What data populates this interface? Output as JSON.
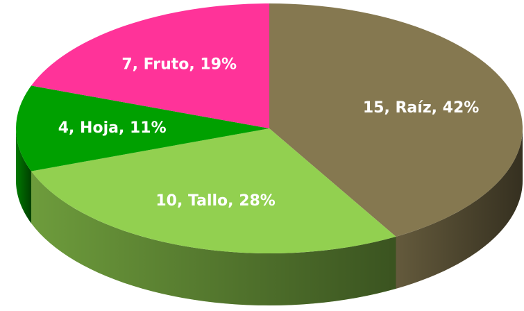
{
  "chart_data": {
    "type": "pie",
    "categories": [
      "Raíz",
      "Tallo",
      "Hoja",
      "Fruto"
    ],
    "values": [
      15,
      10,
      4,
      7
    ],
    "value_labels": [
      "15, Raíz, 42%",
      "10, Tallo, 28%",
      "4, Hoja, 11%",
      "7, Fruto, 19%"
    ],
    "colors": [
      "#857850",
      "#92d050",
      "#00a000",
      "#ff3399"
    ]
  }
}
